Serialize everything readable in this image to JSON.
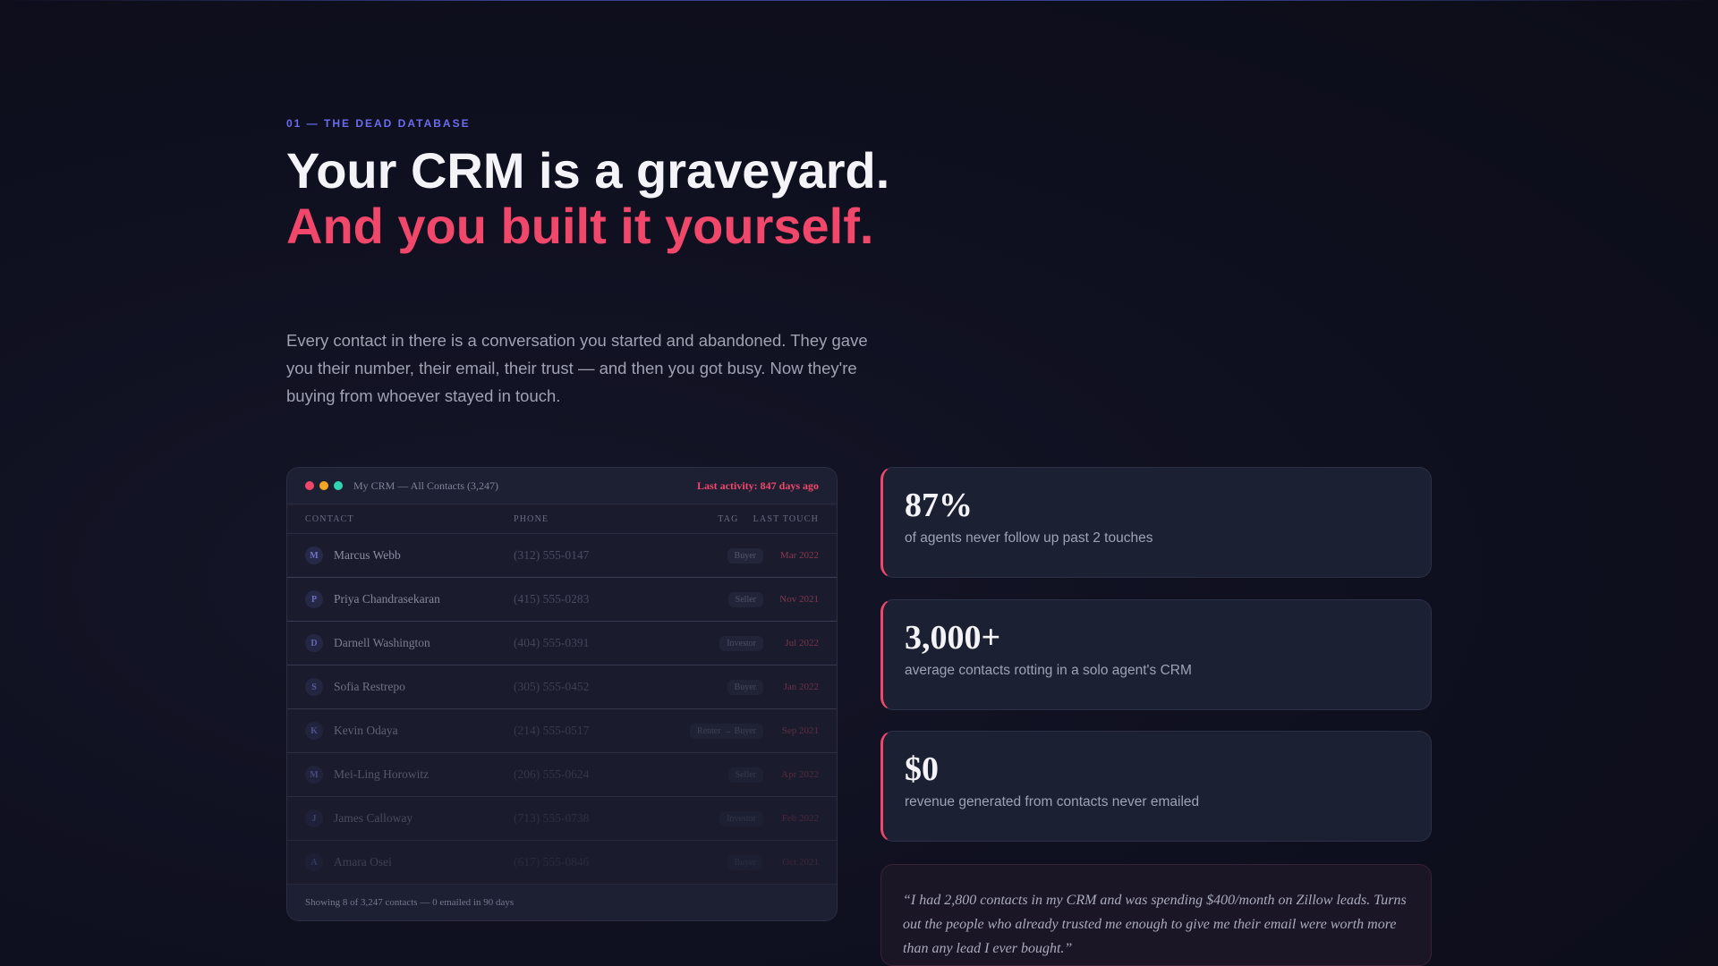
{
  "section": {
    "eyebrow": "01 — THE DEAD DATABASE",
    "headline_plain": "Your CRM is a graveyard.",
    "headline_accent": "And you built it yourself.",
    "lede": "Every contact in there is a conversation you started and abandoned. They gave you their number, their email, their trust — and then you got busy. Now they're buying from whoever stayed in touch."
  },
  "crm": {
    "title": "My CRM — All Contacts (3,247)",
    "last_activity": "Last activity: 847 days ago",
    "columns": {
      "contact": "CONTACT",
      "phone": "PHONE",
      "tag": "TAG",
      "last_touch": "LAST TOUCH"
    },
    "rows": [
      {
        "initial": "M",
        "name": "Marcus Webb",
        "phone": "(312) 555-0147",
        "tag": "Buyer",
        "date": "Mar 2022"
      },
      {
        "initial": "P",
        "name": "Priya Chandrasekaran",
        "phone": "(415) 555-0283",
        "tag": "Seller",
        "date": "Nov 2021"
      },
      {
        "initial": "D",
        "name": "Darnell Washington",
        "phone": "(404) 555-0391",
        "tag": "Investor",
        "date": "Jul 2022"
      },
      {
        "initial": "S",
        "name": "Sofia Restrepo",
        "phone": "(305) 555-0452",
        "tag": "Buyer",
        "date": "Jan 2022"
      },
      {
        "initial": "K",
        "name": "Kevin Odaya",
        "phone": "(214) 555-0517",
        "tag": "Renter → Buyer",
        "date": "Sep 2021"
      },
      {
        "initial": "M",
        "name": "Mei-Ling Horowitz",
        "phone": "(206) 555-0624",
        "tag": "Seller",
        "date": "Apr 2022"
      },
      {
        "initial": "J",
        "name": "James Calloway",
        "phone": "(713) 555-0738",
        "tag": "Investor",
        "date": "Feb 2022"
      },
      {
        "initial": "A",
        "name": "Amara Osei",
        "phone": "(617) 555-0846",
        "tag": "Buyer",
        "date": "Oct 2021"
      }
    ],
    "footer": "Showing 8 of 3,247 contacts — 0 emailed in 90 days"
  },
  "stats": [
    {
      "value": "87%",
      "label": "of agents never follow up past 2 touches"
    },
    {
      "value": "3,000+",
      "label": "average contacts rotting in a solo agent's CRM"
    },
    {
      "value": "$0",
      "label": "revenue generated from contacts never emailed"
    }
  ],
  "quote": "“I had 2,800 contacts in my CRM and was spending $400/month on Zillow leads. Turns out the people who already trusted me enough to give me their email were worth more than any lead I ever bought.”",
  "colors": {
    "accent": "#f0476a",
    "eyebrow": "#6a6cf0",
    "dot_red": "#f0476a",
    "dot_yellow": "#f5a524",
    "dot_green": "#2ed6b0"
  }
}
